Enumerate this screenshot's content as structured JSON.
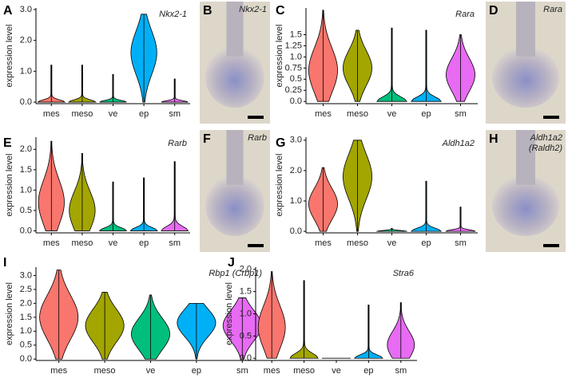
{
  "chart_data": [
    {
      "type": "violin",
      "panel": "A",
      "gene": "Nkx2-1",
      "y_label": "expression level",
      "categories": [
        "mes",
        "meso",
        "ve",
        "ep",
        "sm"
      ],
      "colors": [
        "#f8766d",
        "#a3a500",
        "#00bf7d",
        "#00b0f6",
        "#e76bf3"
      ],
      "medians": [
        0,
        0,
        0,
        1.6,
        0
      ],
      "max": [
        1.2,
        1.2,
        0.9,
        2.85,
        0.75
      ],
      "ylim": [
        -0.05,
        3.05
      ],
      "yticks": [
        {
          "value": 0,
          "label": "0.0"
        },
        {
          "value": 1,
          "label": "1.0"
        },
        {
          "value": 2,
          "label": "2.0"
        },
        {
          "value": 3,
          "label": "3.0"
        }
      ]
    },
    {
      "type": "violin",
      "panel": "C",
      "gene": "Rara",
      "y_label": "expression level",
      "categories": [
        "mes",
        "meso",
        "ve",
        "ep",
        "sm"
      ],
      "colors": [
        "#f8766d",
        "#a3a500",
        "#00bf7d",
        "#00b0f6",
        "#e76bf3"
      ],
      "medians": [
        0.7,
        0.75,
        0,
        0,
        0.6
      ],
      "max": [
        2.05,
        1.6,
        1.65,
        1.6,
        1.5
      ],
      "ylim": [
        -0.05,
        2.1
      ],
      "yticks": [
        {
          "value": 0,
          "label": "0.0"
        },
        {
          "value": 0.25,
          "label": "0.25"
        },
        {
          "value": 0.5,
          "label": "0.5"
        },
        {
          "value": 0.75,
          "label": "0.75"
        },
        {
          "value": 1,
          "label": "1.0"
        },
        {
          "value": 1.25,
          "label": "1.25"
        },
        {
          "value": 1.5,
          "label": "1.5"
        }
      ]
    },
    {
      "type": "violin",
      "panel": "E",
      "gene": "Rarb",
      "y_label": "expression level",
      "categories": [
        "mes",
        "meso",
        "ve",
        "ep",
        "sm"
      ],
      "colors": [
        "#f8766d",
        "#a3a500",
        "#00bf7d",
        "#00b0f6",
        "#e76bf3"
      ],
      "medians": [
        0.7,
        0.5,
        0,
        0,
        0
      ],
      "max": [
        2.2,
        1.9,
        1.2,
        1.3,
        1.7
      ],
      "ylim": [
        -0.05,
        2.3
      ],
      "yticks": [
        {
          "value": 0,
          "label": "0.0"
        },
        {
          "value": 0.5,
          "label": "0.5"
        },
        {
          "value": 1,
          "label": "1.0"
        },
        {
          "value": 1.5,
          "label": "1.5"
        },
        {
          "value": 2,
          "label": "2.0"
        }
      ]
    },
    {
      "type": "violin",
      "panel": "G",
      "gene": "Aldh1a2",
      "y_label": "expression level",
      "categories": [
        "mes",
        "meso",
        "ve",
        "ep",
        "sm"
      ],
      "colors": [
        "#f8766d",
        "#a3a500",
        "#00bf7d",
        "#00b0f6",
        "#e76bf3"
      ],
      "medians": [
        0.9,
        1.8,
        0,
        0,
        0
      ],
      "max": [
        2.1,
        3.0,
        0.1,
        1.65,
        0.8
      ],
      "ylim": [
        -0.05,
        3.1
      ],
      "yticks": [
        {
          "value": 0,
          "label": "0.0"
        },
        {
          "value": 1,
          "label": "1.0"
        },
        {
          "value": 2,
          "label": "2.0"
        },
        {
          "value": 3,
          "label": "3.0"
        }
      ]
    },
    {
      "type": "violin",
      "panel": "I",
      "gene": "Rbp1 (Crbp1)",
      "y_label": "expression level",
      "categories": [
        "mes",
        "meso",
        "ve",
        "ep",
        "sm"
      ],
      "colors": [
        "#f8766d",
        "#a3a500",
        "#00bf7d",
        "#00b0f6",
        "#e76bf3"
      ],
      "medians": [
        1.5,
        1.2,
        0.9,
        1.3,
        1.2
      ],
      "max": [
        3.2,
        2.4,
        2.3,
        2.0,
        2.2
      ],
      "ylim": [
        -0.05,
        3.3
      ],
      "yticks": [
        {
          "value": 0,
          "label": "0.0"
        },
        {
          "value": 0.5,
          "label": "0.5"
        },
        {
          "value": 1,
          "label": "1.0"
        },
        {
          "value": 1.5,
          "label": "1.5"
        },
        {
          "value": 2,
          "label": "2.0"
        },
        {
          "value": 2.5,
          "label": "2.5"
        },
        {
          "value": 3,
          "label": "3.0"
        }
      ]
    },
    {
      "type": "violin",
      "panel": "J",
      "gene": "Stra6",
      "y_label": "expression level",
      "categories": [
        "mes",
        "meso",
        "ve",
        "ep",
        "sm"
      ],
      "colors": [
        "#f8766d",
        "#a3a500",
        "#00bf7d",
        "#00b0f6",
        "#e76bf3"
      ],
      "medians": [
        0.7,
        0,
        0,
        0,
        0.3
      ],
      "max": [
        1.95,
        1.75,
        0,
        1.2,
        1.25
      ],
      "ylim": [
        -0.05,
        2.05
      ],
      "yticks": [
        {
          "value": 0,
          "label": "0.0"
        },
        {
          "value": 0.5,
          "label": "0.5"
        },
        {
          "value": 1,
          "label": "1.0"
        },
        {
          "value": 1.5,
          "label": "1.5"
        },
        {
          "value": 2,
          "label": "2.0"
        }
      ]
    }
  ],
  "image_panels": [
    {
      "panel": "B",
      "label": [
        "Nkx2-1"
      ]
    },
    {
      "panel": "D",
      "label": [
        "Rara"
      ]
    },
    {
      "panel": "F",
      "label": [
        "Rarb"
      ]
    },
    {
      "panel": "H",
      "label": [
        "Aldh1a2",
        "(Raldh2)"
      ]
    }
  ]
}
